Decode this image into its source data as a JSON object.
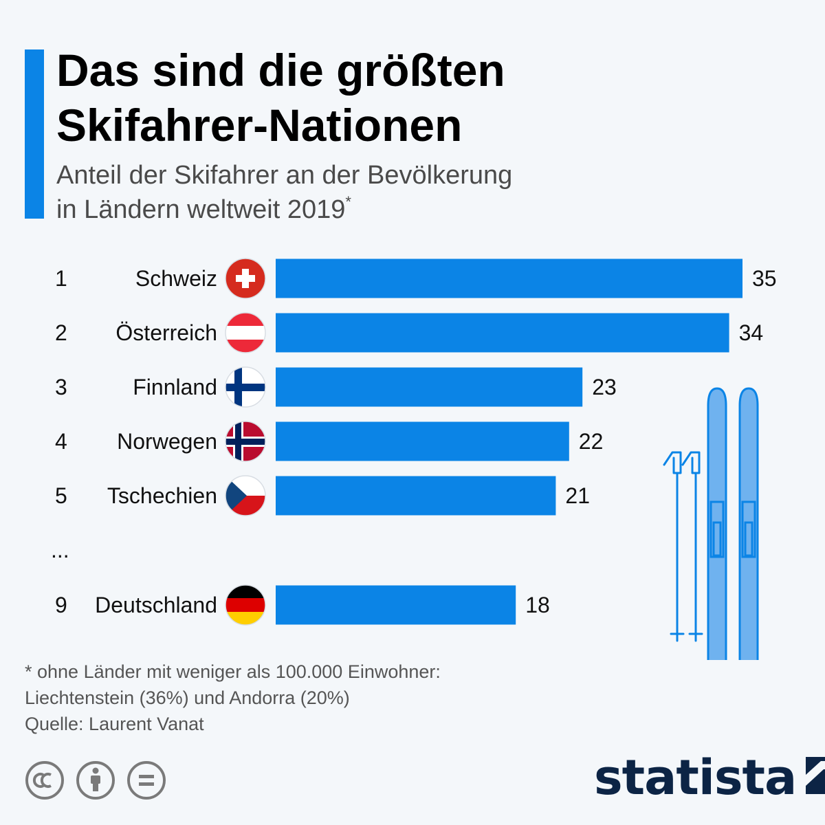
{
  "title_lines": [
    "Das sind die größten",
    "Skifahrer-Nationen"
  ],
  "subtitle_lines": [
    "Anteil der Skifahrer an der Bevölkerung",
    "in Ländern weltweit 2019"
  ],
  "subtitle_mark": "*",
  "gap_marker": "...",
  "chart_data": {
    "type": "bar",
    "orientation": "horizontal",
    "categories": [
      "Schweiz",
      "Österreich",
      "Finnland",
      "Norwegen",
      "Tschechien",
      "Deutschland"
    ],
    "ranks": [
      "1",
      "2",
      "3",
      "4",
      "5",
      "9"
    ],
    "values": [
      35,
      34,
      23,
      22,
      21,
      18
    ],
    "bar_color": "#0b84e6",
    "xlim": [
      0,
      35
    ],
    "grid": false
  },
  "footnote_lines": [
    "* ohne Länder mit weniger als 100.000 Einwohner:",
    "Liechtenstein (36%) und Andorra (20%)",
    "Quelle: Laurent Vanat"
  ],
  "icons": [
    "cc-icon",
    "attribution-icon",
    "no-derivatives-icon",
    "statista-logo-icon",
    "ski-poles-icon",
    "skis-icon"
  ],
  "brand": {
    "name": "statista",
    "color": "#0c2445"
  }
}
